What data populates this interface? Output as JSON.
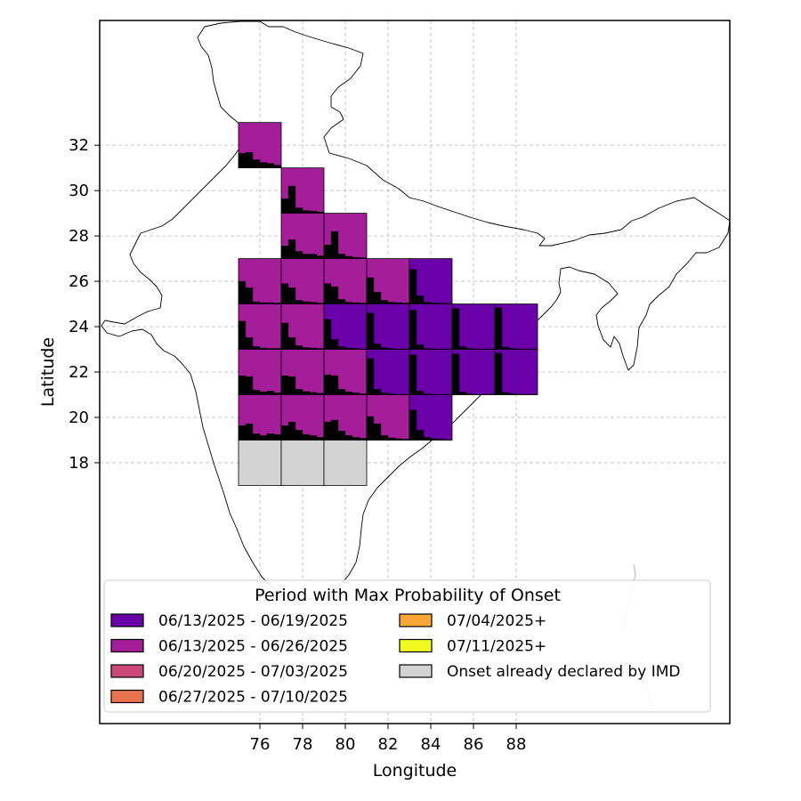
{
  "chart_data": {
    "type": "map",
    "title": "",
    "xlabel": "Longitude",
    "ylabel": "Latitude",
    "xlim": [
      68.5,
      98
    ],
    "ylim": [
      6.5,
      37.5
    ],
    "x_ticks": [
      76,
      78,
      80,
      82,
      84,
      86,
      88
    ],
    "y_ticks": [
      18,
      20,
      22,
      24,
      26,
      28,
      30,
      32
    ],
    "grid": true,
    "legend": {
      "title": "Period with Max Probability of Onset",
      "placement": "lower-center",
      "items": [
        {
          "label": "06/13/2025 - 06/19/2025",
          "color": "#6a00a8"
        },
        {
          "label": "06/13/2025 - 06/26/2025",
          "color": "#a41e9a"
        },
        {
          "label": "06/20/2025 - 07/03/2025",
          "color": "#cb4778"
        },
        {
          "label": "06/27/2025 - 07/10/2025",
          "color": "#e8744f"
        },
        {
          "label": "07/04/2025+",
          "color": "#fca635"
        },
        {
          "label": "07/11/2025+",
          "color": "#f0f921"
        },
        {
          "label": "Onset already declared by IMD",
          "color": "#d3d3d3"
        }
      ]
    },
    "cells": [
      {
        "lon": 75,
        "lat": 31,
        "period": 1,
        "bars": [
          0.32,
          0.34,
          0.18,
          0.12,
          0.1,
          0.06
        ]
      },
      {
        "lon": 77,
        "lat": 29,
        "period": 1,
        "bars": [
          0.32,
          0.6,
          0.12,
          0.06,
          0.05,
          0.03
        ]
      },
      {
        "lon": 77,
        "lat": 27,
        "period": 1,
        "bars": [
          0.28,
          0.42,
          0.16,
          0.1,
          0.1,
          0.06
        ]
      },
      {
        "lon": 79,
        "lat": 27,
        "period": 1,
        "bars": [
          0.3,
          0.6,
          0.1,
          0.05,
          0.03,
          0.02
        ]
      },
      {
        "lon": 75,
        "lat": 25,
        "period": 1,
        "bars": [
          0.5,
          0.36,
          0.05,
          0.03,
          0.03,
          0.02
        ]
      },
      {
        "lon": 77,
        "lat": 25,
        "period": 1,
        "bars": [
          0.45,
          0.36,
          0.08,
          0.05,
          0.04,
          0.02
        ]
      },
      {
        "lon": 79,
        "lat": 25,
        "period": 1,
        "bars": [
          0.45,
          0.38,
          0.1,
          0.04,
          0.03,
          0.02
        ]
      },
      {
        "lon": 81,
        "lat": 25,
        "period": 1,
        "bars": [
          0.58,
          0.26,
          0.08,
          0.04,
          0.03,
          0.02
        ]
      },
      {
        "lon": 83,
        "lat": 25,
        "period": 0,
        "bars": [
          0.76,
          0.18,
          0.04,
          0.02,
          0.02,
          0.01
        ]
      },
      {
        "lon": 75,
        "lat": 23,
        "period": 1,
        "bars": [
          0.62,
          0.26,
          0.06,
          0.03,
          0.02,
          0.02
        ]
      },
      {
        "lon": 77,
        "lat": 23,
        "period": 1,
        "bars": [
          0.58,
          0.26,
          0.08,
          0.04,
          0.03,
          0.02
        ]
      },
      {
        "lon": 79,
        "lat": 23,
        "period": 0,
        "bars": [
          0.66,
          0.22,
          0.06,
          0.03,
          0.02,
          0.01
        ]
      },
      {
        "lon": 81,
        "lat": 23,
        "period": 0,
        "bars": [
          0.8,
          0.12,
          0.04,
          0.02,
          0.01,
          0.01
        ]
      },
      {
        "lon": 83,
        "lat": 23,
        "period": 0,
        "bars": [
          0.86,
          0.1,
          0.02,
          0.01,
          0.01,
          0.01
        ]
      },
      {
        "lon": 85,
        "lat": 23,
        "period": 0,
        "bars": [
          0.9,
          0.06,
          0.02,
          0.01,
          0.01,
          0.01
        ]
      },
      {
        "lon": 87,
        "lat": 23,
        "period": 0,
        "bars": [
          0.92,
          0.05,
          0.02,
          0.01,
          0.01,
          0.01
        ]
      },
      {
        "lon": 75,
        "lat": 21,
        "period": 1,
        "bars": [
          0.42,
          0.4,
          0.1,
          0.06,
          0.08,
          0.04
        ]
      },
      {
        "lon": 77,
        "lat": 21,
        "period": 1,
        "bars": [
          0.42,
          0.4,
          0.12,
          0.07,
          0.05,
          0.03
        ]
      },
      {
        "lon": 79,
        "lat": 21,
        "period": 1,
        "bars": [
          0.44,
          0.42,
          0.12,
          0.06,
          0.04,
          0.02
        ]
      },
      {
        "lon": 81,
        "lat": 21,
        "period": 0,
        "bars": [
          0.8,
          0.12,
          0.04,
          0.02,
          0.01,
          0.01
        ]
      },
      {
        "lon": 83,
        "lat": 21,
        "period": 0,
        "bars": [
          0.88,
          0.08,
          0.02,
          0.01,
          0.01,
          0.01
        ]
      },
      {
        "lon": 85,
        "lat": 21,
        "period": 0,
        "bars": [
          0.9,
          0.06,
          0.02,
          0.01,
          0.01,
          0.01
        ]
      },
      {
        "lon": 87,
        "lat": 21,
        "period": 0,
        "bars": [
          0.92,
          0.05,
          0.02,
          0.01,
          0.01,
          0.01
        ]
      },
      {
        "lon": 75,
        "lat": 19,
        "period": 1,
        "bars": [
          0.32,
          0.36,
          0.14,
          0.1,
          0.14,
          0.12
        ]
      },
      {
        "lon": 77,
        "lat": 19,
        "period": 1,
        "bars": [
          0.32,
          0.4,
          0.22,
          0.12,
          0.1,
          0.06
        ]
      },
      {
        "lon": 79,
        "lat": 19,
        "period": 1,
        "bars": [
          0.4,
          0.44,
          0.2,
          0.1,
          0.06,
          0.04
        ]
      },
      {
        "lon": 81,
        "lat": 19,
        "period": 1,
        "bars": [
          0.52,
          0.36,
          0.1,
          0.05,
          0.03,
          0.02
        ]
      },
      {
        "lon": 83,
        "lat": 19,
        "period": 0,
        "bars": [
          0.66,
          0.22,
          0.06,
          0.03,
          0.02,
          0.01
        ]
      },
      {
        "lon": 75,
        "lat": 17,
        "period": 6,
        "bars": []
      },
      {
        "lon": 77,
        "lat": 17,
        "period": 6,
        "bars": []
      },
      {
        "lon": 79,
        "lat": 17,
        "period": 6,
        "bars": []
      }
    ]
  }
}
